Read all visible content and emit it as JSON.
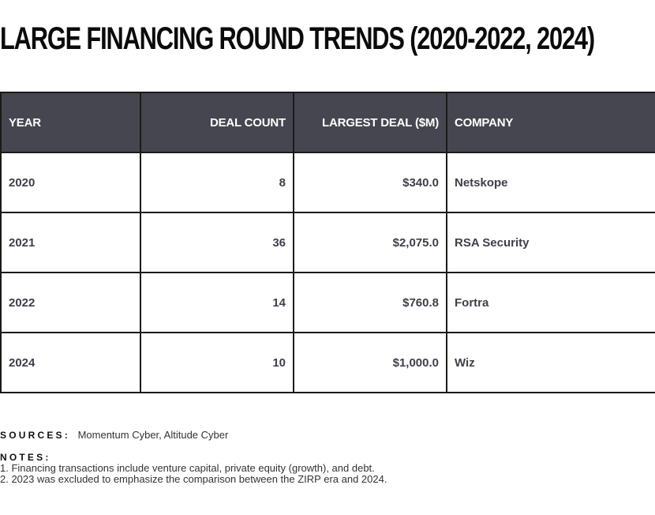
{
  "title": "LARGE FINANCING ROUND TRENDS (2020-2022, 2024)",
  "chart_data": {
    "type": "table",
    "title": "LARGE FINANCING ROUND TRENDS (2020-2022, 2024)",
    "columns": [
      "YEAR",
      "DEAL COUNT",
      "LARGEST DEAL ($M)",
      "COMPANY"
    ],
    "rows": [
      [
        "2020",
        "8",
        "$340.0",
        "Netskope"
      ],
      [
        "2021",
        "36",
        "$2,075.0",
        "RSA Security"
      ],
      [
        "2022",
        "14",
        "$760.8",
        "Fortra"
      ],
      [
        "2024",
        "10",
        "$1,000.0",
        "Wiz"
      ]
    ]
  },
  "footer": {
    "sources_label": "SOURCES:",
    "sources_text": "Momentum Cyber, Altitude Cyber",
    "notes_label": "NOTES:",
    "notes": [
      "1. Financing transactions include venture capital, private equity (growth), and debt.",
      "2. 2023 was excluded to emphasize the comparison between the ZIRP era and 2024."
    ]
  },
  "colors": {
    "header_bg": "#464650",
    "header_text": "#ffffff",
    "cell_text": "#3f3f4a",
    "border": "#1a1a1a"
  }
}
